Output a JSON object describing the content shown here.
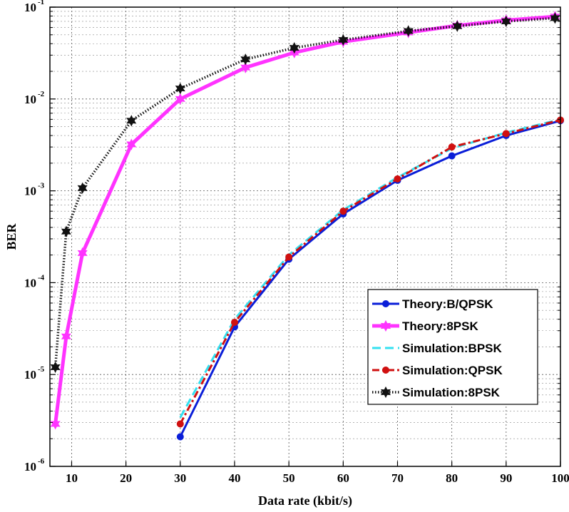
{
  "chart_data": {
    "type": "line",
    "xlabel": "Data rate (kbit/s)",
    "ylabel": "BER",
    "xlim": [
      6,
      100
    ],
    "ylim": [
      1e-06,
      0.1
    ],
    "yscale": "log",
    "grid": true,
    "legend_position": "bottom-right",
    "x_ticks": [
      10,
      20,
      30,
      40,
      50,
      60,
      70,
      80,
      90,
      100
    ],
    "y_ticks": [
      {
        "value": 1e-06,
        "base": "10",
        "exp": "-6"
      },
      {
        "value": 1e-05,
        "base": "10",
        "exp": "-5"
      },
      {
        "value": 0.0001,
        "base": "10",
        "exp": "-4"
      },
      {
        "value": 0.001,
        "base": "10",
        "exp": "-3"
      },
      {
        "value": 0.01,
        "base": "10",
        "exp": "-2"
      },
      {
        "value": 0.1,
        "base": "10",
        "exp": "-1"
      }
    ],
    "series": [
      {
        "name": "Theory:B/QPSK",
        "color": "#0a1ed8",
        "style": "solid",
        "marker": "circle",
        "x": [
          30,
          40,
          50,
          60,
          70,
          80,
          90,
          100
        ],
        "y": [
          2.1e-06,
          3.3e-05,
          0.00018,
          0.00056,
          0.0013,
          0.0024,
          0.004,
          0.0058
        ]
      },
      {
        "name": "Theory:8PSK",
        "color": "#ff33ff",
        "style": "solid",
        "marker": "star",
        "x": [
          7,
          9,
          12,
          21,
          30,
          42,
          51,
          60,
          72,
          81,
          90,
          99
        ],
        "y": [
          2.9e-06,
          2.6e-05,
          0.00021,
          0.0032,
          0.01,
          0.022,
          0.032,
          0.042,
          0.053,
          0.063,
          0.072,
          0.079
        ]
      },
      {
        "name": "Simulation:BPSK",
        "color": "#33e0f0",
        "style": "dashed",
        "marker": "none",
        "x": [
          30,
          40,
          50,
          60,
          70,
          80,
          90,
          100
        ],
        "y": [
          3.4e-06,
          4e-05,
          0.0002,
          0.00062,
          0.0014,
          0.0029,
          0.0043,
          0.006
        ]
      },
      {
        "name": "Simulation:QPSK",
        "color": "#d01010",
        "style": "dashdot",
        "marker": "circle",
        "x": [
          30,
          40,
          50,
          60,
          70,
          80,
          90,
          100
        ],
        "y": [
          2.9e-06,
          3.7e-05,
          0.00019,
          0.0006,
          0.00135,
          0.003,
          0.0042,
          0.0059
        ]
      },
      {
        "name": "Simulation:8PSK",
        "color": "#111111",
        "style": "dotted",
        "marker": "star",
        "x": [
          7,
          9,
          12,
          21,
          30,
          42,
          51,
          60,
          72,
          81,
          90,
          99
        ],
        "y": [
          1.2e-05,
          0.00036,
          0.00107,
          0.0058,
          0.013,
          0.027,
          0.036,
          0.044,
          0.055,
          0.062,
          0.07,
          0.076
        ]
      }
    ]
  }
}
